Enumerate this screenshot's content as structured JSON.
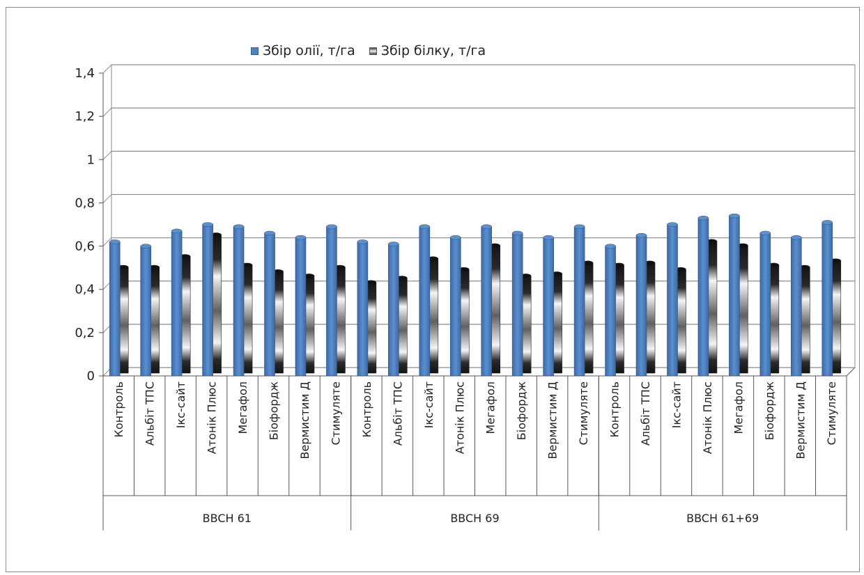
{
  "chart_data": {
    "type": "bar",
    "stacked": true,
    "groups": [
      "BBCH 61",
      "BBCH 69",
      "BBCH 61+69"
    ],
    "categories": [
      "Контроль",
      "Альбіт ТПС",
      "Ікс-сайт",
      "Атонік Плюс",
      "Мегафол",
      "Біофордж",
      "Вермистим Д",
      "Стимуляте"
    ],
    "series": [
      {
        "name": "Збір олії, т/га",
        "color": "#4f81bd",
        "values": [
          [
            0.62,
            0.6,
            0.67,
            0.7,
            0.69,
            0.66,
            0.64,
            0.69
          ],
          [
            0.62,
            0.61,
            0.69,
            0.64,
            0.69,
            0.66,
            0.64,
            0.69
          ],
          [
            0.6,
            0.65,
            0.7,
            0.73,
            0.74,
            0.66,
            0.64,
            0.71
          ]
        ]
      },
      {
        "name": "Збір білку, т/га",
        "color": "gradient-black-white",
        "values": [
          [
            0.49,
            0.49,
            0.54,
            0.64,
            0.5,
            0.47,
            0.45,
            0.49
          ],
          [
            0.42,
            0.44,
            0.53,
            0.48,
            0.59,
            0.45,
            0.46,
            0.51
          ],
          [
            0.5,
            0.51,
            0.48,
            0.61,
            0.59,
            0.5,
            0.49,
            0.52
          ]
        ]
      }
    ],
    "y_ticks": [
      "0",
      "0,2",
      "0,4",
      "0,6",
      "0,8",
      "1",
      "1,2",
      "1,4"
    ],
    "ylim": [
      0,
      1.4
    ],
    "grid": true,
    "legend_position": "top",
    "xlabel": "",
    "ylabel": "",
    "title": ""
  }
}
